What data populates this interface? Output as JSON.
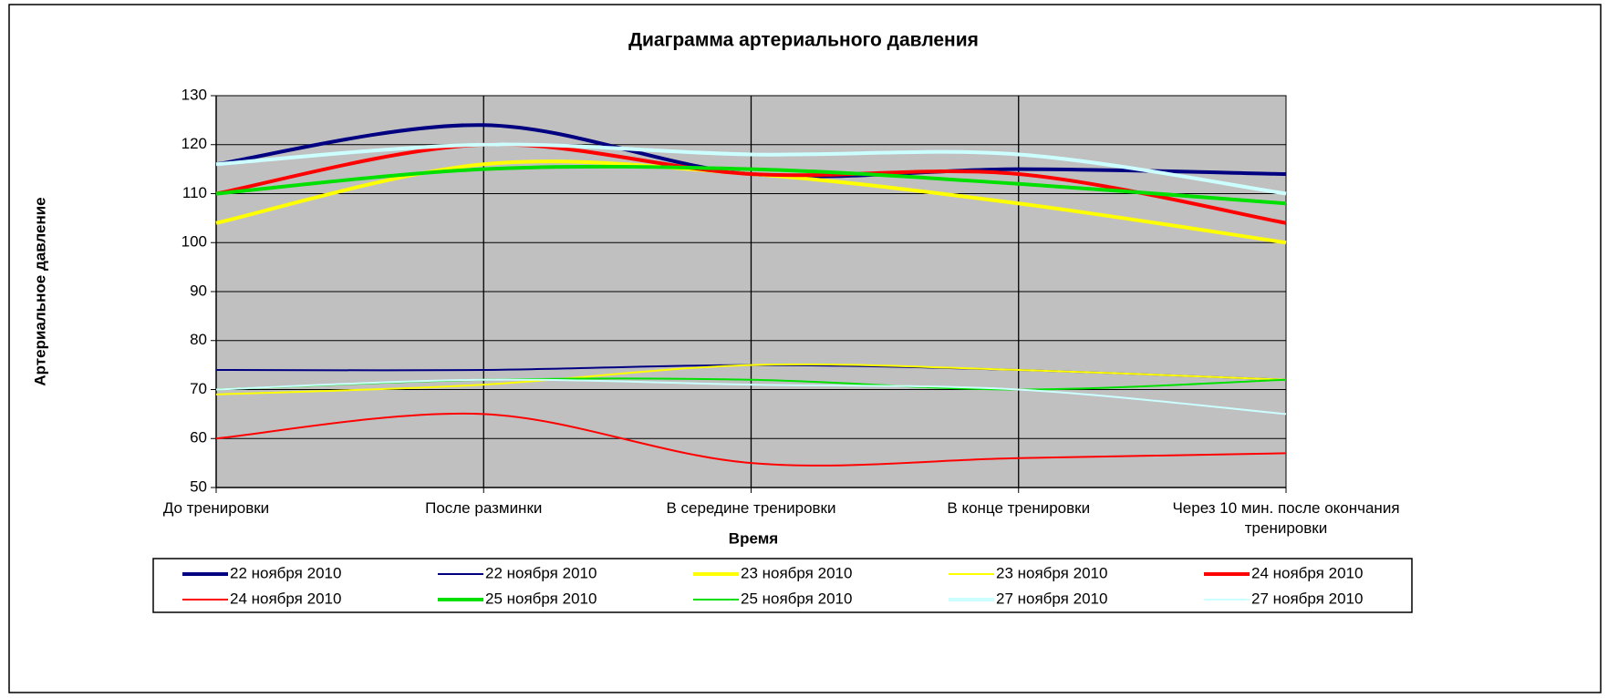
{
  "chart_data": {
    "type": "line",
    "title": "Диаграмма артериального давления",
    "x_label": "Время",
    "y_label": "Артериальное давление",
    "categories": [
      "До тренировки",
      "После разминки",
      "В середине тренировки",
      "В конце тренировки",
      "Через 10 мин.  после окончания тренировки"
    ],
    "ylim": [
      50,
      130
    ],
    "yticks": [
      50,
      60,
      70,
      80,
      90,
      100,
      110,
      120,
      130
    ],
    "grid": true,
    "smooth": true,
    "legend": "bottom",
    "series": [
      {
        "name": "22 ноября 2010",
        "color": "#000080",
        "width": 4,
        "values": [
          116,
          124,
          114,
          115,
          114
        ]
      },
      {
        "name": "22 ноября 2010",
        "color": "#000080",
        "width": 2,
        "values": [
          74,
          74,
          75,
          74,
          72
        ]
      },
      {
        "name": "23 ноября 2010",
        "color": "#ffff00",
        "width": 4,
        "values": [
          104,
          116,
          114,
          108,
          100
        ]
      },
      {
        "name": "23 ноября 2010",
        "color": "#ffff00",
        "width": 2,
        "values": [
          69,
          71,
          75,
          74,
          72
        ]
      },
      {
        "name": "24 ноября 2010",
        "color": "#ff0000",
        "width": 4,
        "values": [
          110,
          120,
          114,
          114,
          104
        ]
      },
      {
        "name": "24 ноября 2010",
        "color": "#ff0000",
        "width": 2,
        "values": [
          60,
          65,
          55,
          56,
          57
        ]
      },
      {
        "name": "25 ноября 2010",
        "color": "#00e000",
        "width": 4,
        "values": [
          110,
          115,
          115,
          112,
          108
        ]
      },
      {
        "name": "25 ноября 2010",
        "color": "#00e000",
        "width": 2,
        "values": [
          70,
          72,
          72,
          70,
          72
        ]
      },
      {
        "name": "27 ноября 2010",
        "color": "#ccffff",
        "width": 4,
        "values": [
          116,
          120,
          118,
          118,
          110
        ]
      },
      {
        "name": "27 ноября 2010",
        "color": "#ccffff",
        "width": 2,
        "values": [
          70,
          72,
          71,
          70,
          65
        ]
      }
    ]
  }
}
